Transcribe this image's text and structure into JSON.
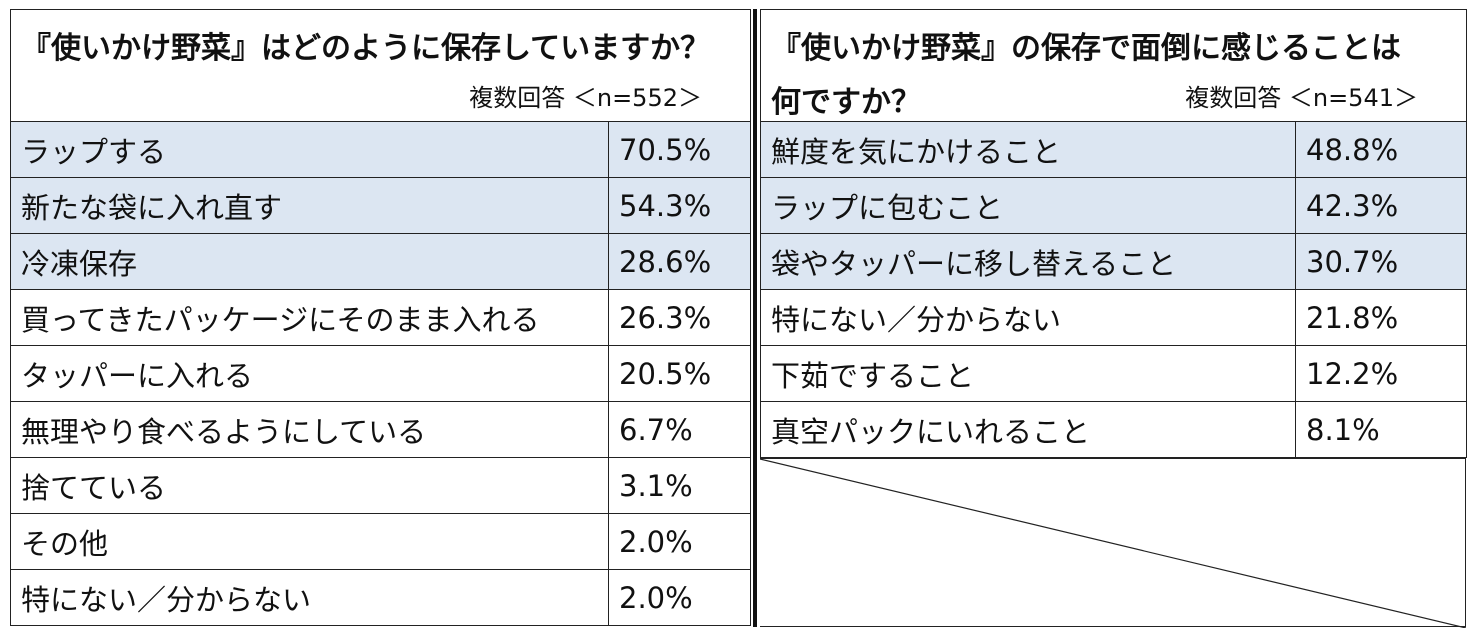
{
  "left": {
    "title": "『使いかけ野菜』はどのように保存していますか？",
    "meta": "複数回答 ＜n=552＞",
    "rows": [
      {
        "label": "ラップする",
        "value": "70.5%"
      },
      {
        "label": "新たな袋に入れ直す",
        "value": "54.3%"
      },
      {
        "label": "冷凍保存",
        "value": "28.6%"
      },
      {
        "label": "買ってきたパッケージにそのまま入れる",
        "value": "26.3%"
      },
      {
        "label": "タッパーに入れる",
        "value": "20.5%"
      },
      {
        "label": "無理やり食べるようにしている",
        "value": "6.7%"
      },
      {
        "label": "捨てている",
        "value": "3.1%"
      },
      {
        "label": "その他",
        "value": "2.0%"
      },
      {
        "label": "特にない／分からない",
        "value": "2.0%"
      }
    ]
  },
  "right": {
    "title_line1": "『使いかけ野菜』の保存で面倒に感じることは",
    "title_line2": "何ですか？",
    "meta": "複数回答 ＜n=541＞",
    "rows": [
      {
        "label": "鮮度を気にかけること",
        "value": "48.8%"
      },
      {
        "label": "ラップに包むこと",
        "value": "42.3%"
      },
      {
        "label": "袋やタッパーに移し替えること",
        "value": "30.7%"
      },
      {
        "label": "特にない／分からない",
        "value": "21.8%"
      },
      {
        "label": "下茹ですること",
        "value": "12.2%"
      },
      {
        "label": "真空パックにいれること",
        "value": "8.1%"
      }
    ]
  },
  "colors": {
    "highlight": "#dce6f2",
    "border": "#222222"
  }
}
